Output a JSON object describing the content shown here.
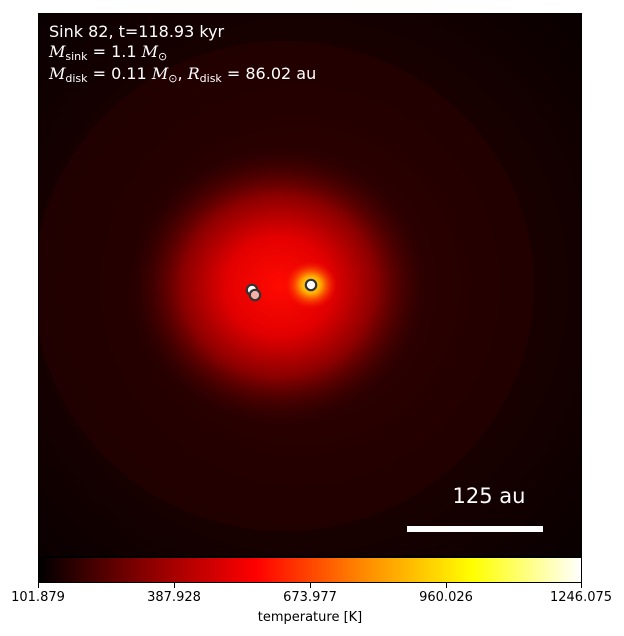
{
  "annotation": {
    "line1": "Sink 82, t=118.93 kyr",
    "sink_symbol": "M",
    "sink_sub": "sink",
    "sink_value": " = 1.1 ",
    "solar_symbol": "M",
    "solar_sub": "⊙",
    "disk_m_symbol": "M",
    "disk_m_sub": "disk",
    "disk_m_value": " = 0.11 ",
    "disk_r_symbol": "R",
    "disk_r_sub": "disk",
    "disk_r_value": " = 86.02 au"
  },
  "scale_bar": {
    "label": "125 au"
  },
  "colorbar": {
    "label": "temperature [K]",
    "ticks": [
      "101.879",
      "387.928",
      "673.977",
      "960.026",
      "1246.075"
    ],
    "colormap": "hot",
    "colors": [
      "#000000",
      "#8a0000",
      "#ff0000",
      "#ff8a00",
      "#ffff00",
      "#ffffff"
    ]
  },
  "sinks": [
    {
      "name": "sink-left-upper",
      "fill": "#ffffff",
      "edge": "#333333"
    },
    {
      "name": "sink-left-lower",
      "fill": "#f5b0a8",
      "edge": "#333333"
    },
    {
      "name": "sink-right",
      "fill": "#ffffff",
      "edge": "#333333"
    }
  ]
}
